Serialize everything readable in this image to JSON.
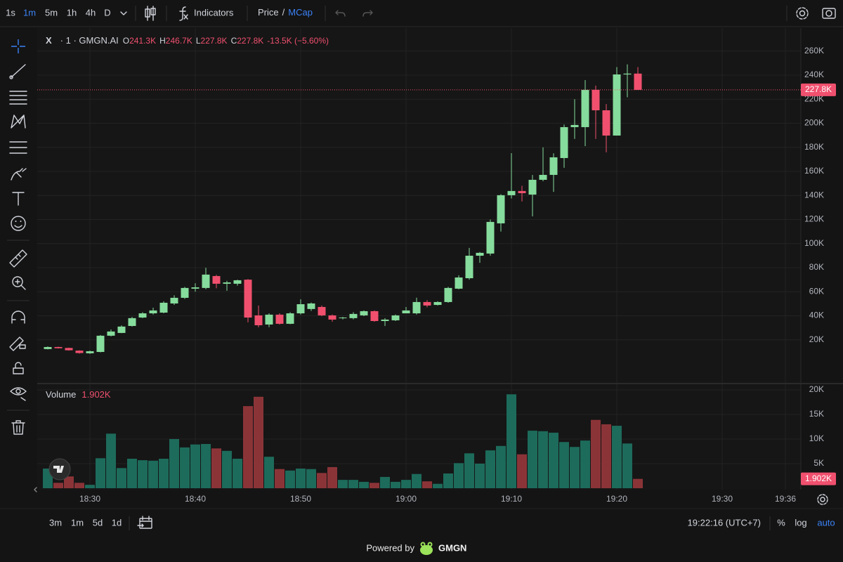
{
  "toolbar": {
    "intervals": [
      "1s",
      "1m",
      "5m",
      "1h",
      "4h",
      "D"
    ],
    "active_interval": 1,
    "indicators": "Indicators",
    "price": "Price",
    "slash": "/",
    "mcap": "MCap"
  },
  "legend": {
    "symbol": "X",
    "description": "· 1 · GMGN.AI",
    "open_key": "O",
    "open": "241.3K",
    "high_key": "H",
    "high": "246.7K",
    "low_key": "L",
    "low": "227.8K",
    "close_key": "C",
    "close": "227.8K",
    "change": "-13.5K (−5.60%)"
  },
  "chart_data": [
    {
      "type": "candlestick",
      "x": [
        "18:26",
        "18:27",
        "18:28",
        "18:29",
        "18:30",
        "18:31",
        "18:32",
        "18:33",
        "18:34",
        "18:35",
        "18:36",
        "18:37",
        "18:38",
        "18:39",
        "18:40",
        "18:41",
        "18:42",
        "18:43",
        "18:44",
        "18:45",
        "18:46",
        "18:47",
        "18:48",
        "18:49",
        "18:50",
        "18:51",
        "18:52",
        "18:53",
        "18:54",
        "18:55",
        "18:56",
        "18:57",
        "18:58",
        "18:59",
        "19:00",
        "19:01",
        "19:02",
        "19:03",
        "19:04",
        "19:05",
        "19:06",
        "19:07",
        "19:08",
        "19:09",
        "19:10",
        "19:11",
        "19:12",
        "19:13",
        "19:14",
        "19:15",
        "19:16",
        "19:17",
        "19:18",
        "19:19",
        "19:20",
        "19:21",
        "19:22"
      ],
      "open": [
        12300,
        14000,
        13200,
        11000,
        8800,
        9900,
        23400,
        25700,
        31500,
        38500,
        42000,
        42600,
        50200,
        54900,
        62500,
        63100,
        73000,
        66600,
        66600,
        70000,
        40300,
        32700,
        40900,
        33300,
        42000,
        45600,
        47300,
        40300,
        38000,
        38000,
        40300,
        43800,
        35600,
        36200,
        42000,
        42000,
        51400,
        49000,
        51400,
        62500,
        71200,
        89900,
        91700,
        116800,
        140200,
        143700,
        140700,
        153000,
        157100,
        171100,
        196800,
        196800,
        227800,
        210800,
        189800,
        240600,
        241300
      ],
      "high": [
        14500,
        14300,
        13500,
        11300,
        11000,
        24000,
        28600,
        32000,
        39000,
        43000,
        46700,
        52000,
        57000,
        64000,
        67000,
        79900,
        74000,
        69000,
        70000,
        70500,
        48500,
        42000,
        42000,
        43000,
        53700,
        51000,
        48500,
        41000,
        39000,
        43000,
        44400,
        44400,
        38000,
        41000,
        47300,
        55000,
        53000,
        52000,
        64000,
        73600,
        96400,
        93000,
        120000,
        141000,
        175200,
        148000,
        157000,
        180000,
        175000,
        199000,
        220000,
        235900,
        231300,
        216000,
        246700,
        249000,
        246700
      ],
      "low": [
        12000,
        12800,
        11000,
        8500,
        8300,
        9500,
        22800,
        25500,
        31000,
        38000,
        41000,
        42000,
        49000,
        54000,
        60000,
        62000,
        62800,
        60800,
        65000,
        34500,
        30400,
        30500,
        32700,
        33000,
        41000,
        44000,
        39700,
        35000,
        37000,
        37000,
        39700,
        35000,
        31500,
        35600,
        42000,
        41000,
        47000,
        48500,
        50800,
        62000,
        70000,
        84000,
        90000,
        110000,
        137500,
        135000,
        122600,
        151800,
        143000,
        163000,
        187000,
        181000,
        187000,
        175800,
        189800,
        221600,
        227800
      ],
      "close": [
        14000,
        13000,
        11300,
        9000,
        10500,
        23400,
        26900,
        31000,
        38000,
        42000,
        44400,
        50800,
        54900,
        63100,
        63600,
        74200,
        66600,
        67700,
        69500,
        38500,
        32100,
        40900,
        33300,
        42000,
        49600,
        50200,
        40300,
        36800,
        38500,
        41500,
        43800,
        35600,
        36800,
        40300,
        44400,
        51400,
        48500,
        51400,
        63100,
        71800,
        89900,
        92300,
        118000,
        140200,
        143700,
        141900,
        153000,
        157100,
        171700,
        196800,
        198600,
        227800,
        210800,
        189800,
        240600,
        241300,
        227800
      ],
      "up_color": "#86dc9c",
      "down_color": "#f0506e",
      "ylim": [
        -15800,
        269200
      ],
      "yticks": [
        {
          "value": 20000,
          "label": "20K"
        },
        {
          "value": 40000,
          "label": "40K"
        },
        {
          "value": 60000,
          "label": "60K"
        },
        {
          "value": 80000,
          "label": "80K"
        },
        {
          "value": 100000,
          "label": "100K"
        },
        {
          "value": 120000,
          "label": "120K"
        },
        {
          "value": 140000,
          "label": "140K"
        },
        {
          "value": 160000,
          "label": "160K"
        },
        {
          "value": 180000,
          "label": "180K"
        },
        {
          "value": 200000,
          "label": "200K"
        },
        {
          "value": 220000,
          "label": "220K"
        },
        {
          "value": 240000,
          "label": "240K"
        },
        {
          "value": 260000,
          "label": "260K"
        }
      ],
      "price_line": {
        "value": 227800,
        "label": "227.8K"
      },
      "grid": true
    },
    {
      "type": "bar",
      "title": "Volume",
      "values": [
        4000,
        1100,
        2400,
        1100,
        700,
        6100,
        11100,
        4100,
        6000,
        5700,
        5600,
        6000,
        10000,
        8300,
        8900,
        9000,
        8100,
        7600,
        6000,
        16700,
        18600,
        6400,
        3900,
        3600,
        4000,
        3900,
        3100,
        4300,
        1700,
        1700,
        1300,
        1100,
        2300,
        1300,
        1700,
        2900,
        1400,
        900,
        3000,
        5100,
        7100,
        5000,
        7700,
        8600,
        19100,
        6900,
        11700,
        11600,
        11300,
        9400,
        8400,
        9700,
        13900,
        13000,
        12700,
        9100,
        1902
      ],
      "up_color": "#1d6b5b",
      "down_color": "#8b3438",
      "last": {
        "value": 1902,
        "label": "1.902K"
      },
      "ylim": [
        0,
        21000
      ],
      "yticks": [
        {
          "value": 5000,
          "label": "5K"
        },
        {
          "value": 10000,
          "label": "10K"
        },
        {
          "value": 15000,
          "label": "15K"
        },
        {
          "value": 20000,
          "label": "20K"
        }
      ],
      "xlim": [
        "18:25",
        "19:37"
      ],
      "xticks": [
        "18:30",
        "18:40",
        "18:50",
        "19:00",
        "19:10",
        "19:20",
        "19:30",
        "19:36"
      ],
      "grid": true
    }
  ],
  "bottom_bar": {
    "ranges": [
      "3m",
      "1m",
      "5d",
      "1d"
    ],
    "clock": "19:22:16 (UTC+7)",
    "percent": "%",
    "log": "log",
    "auto": "auto"
  },
  "footer": {
    "powered": "Powered by",
    "brand": "GMGN"
  }
}
